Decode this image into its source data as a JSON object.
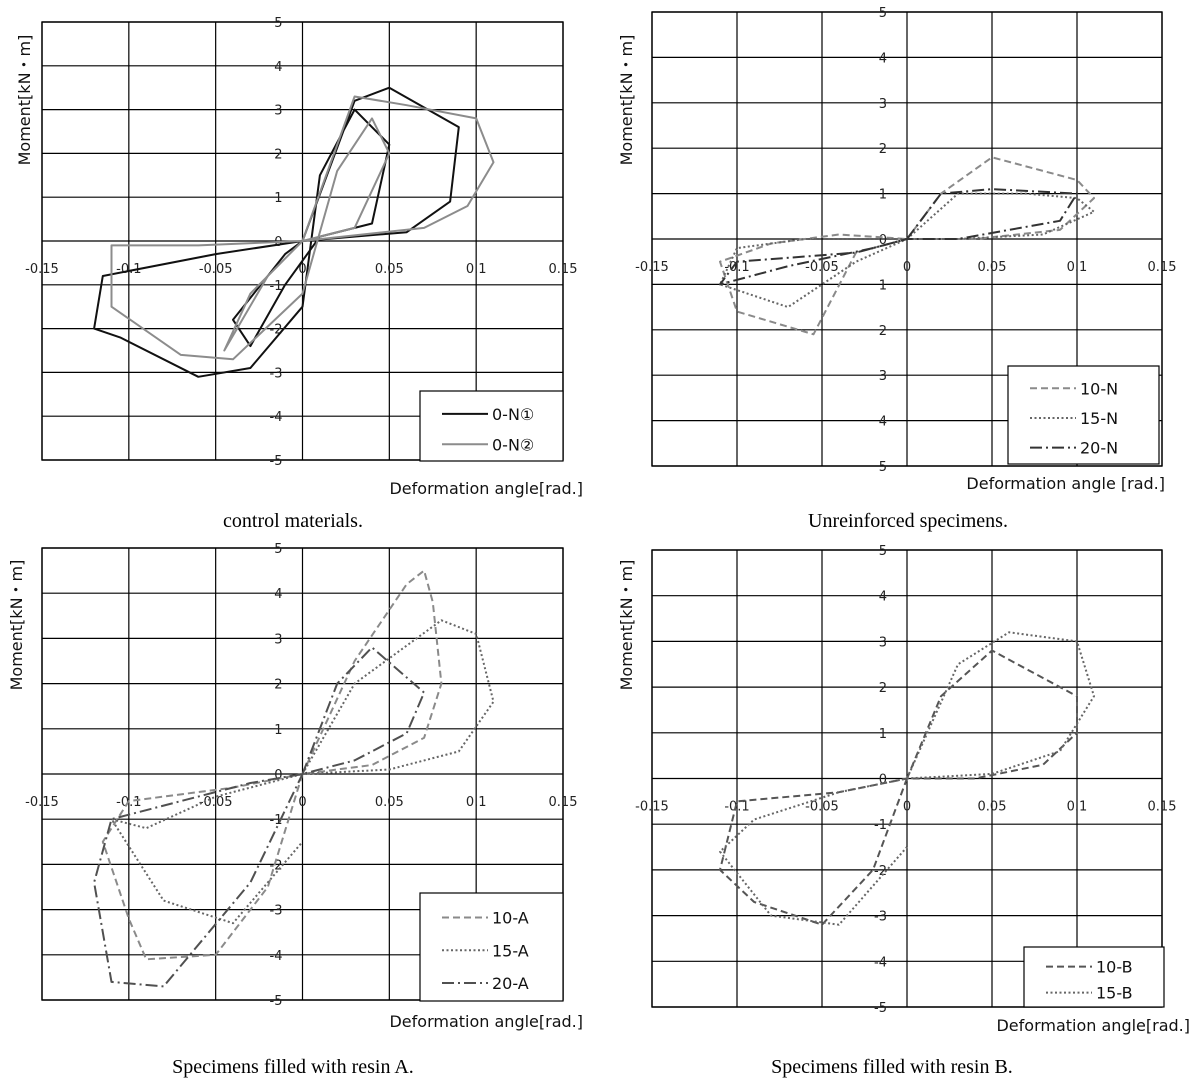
{
  "chart_data": [
    {
      "type": "line",
      "caption": "control materials.",
      "xlabel": "Deformation angle[rad.]",
      "ylabel": "Moment[kN・m]",
      "xlim": [
        -0.15,
        0.15
      ],
      "ylim": [
        -5,
        5
      ],
      "x_ticks": [
        "-0.15",
        "-0.1",
        "-0.05",
        "0",
        "0.05",
        "0.1",
        "0.15"
      ],
      "y_ticks": [
        "5",
        "4",
        "3",
        "2",
        "1",
        "0",
        "-1",
        "-2",
        "-3",
        "-4",
        "-5"
      ],
      "grid": true,
      "legend_position": "bottom-right",
      "series": [
        {
          "name": "0-N①",
          "color": "#111111",
          "style": "solid",
          "x": [
            0,
            0.03,
            0.05,
            0.09,
            0.085,
            0.06,
            0,
            -0.05,
            -0.115,
            -0.12,
            -0.105,
            -0.06,
            -0.03,
            0,
            0.01,
            0.03,
            0.05,
            0.04,
            0.01,
            -0.01,
            -0.03,
            -0.04,
            -0.01,
            0
          ],
          "y": [
            0,
            3.2,
            3.5,
            2.6,
            0.9,
            0.2,
            0,
            -0.3,
            -0.8,
            -2.0,
            -2.2,
            -3.1,
            -2.9,
            -1.5,
            1.5,
            3.0,
            2.2,
            0.4,
            0.1,
            -1.0,
            -2.4,
            -1.8,
            -0.3,
            0
          ]
        },
        {
          "name": "0-N②",
          "color": "#8c8c8c",
          "style": "solid",
          "x": [
            0,
            0.03,
            0.06,
            0.1,
            0.11,
            0.095,
            0.07,
            0,
            -0.06,
            -0.11,
            -0.11,
            -0.07,
            -0.04,
            0,
            0.02,
            0.04,
            0.05,
            0.03,
            0,
            -0.03,
            -0.045,
            -0.02,
            0
          ],
          "y": [
            0,
            3.3,
            3.1,
            2.8,
            1.8,
            0.8,
            0.3,
            0,
            -0.1,
            -0.1,
            -1.5,
            -2.6,
            -2.7,
            -1.2,
            1.6,
            2.8,
            2.0,
            0.3,
            0,
            -1.2,
            -2.5,
            -0.8,
            0
          ]
        }
      ]
    },
    {
      "type": "line",
      "caption": "Unreinforced specimens.",
      "xlabel": "Deformation angle [rad.]",
      "ylabel": "Moment[kN・m]",
      "xlim": [
        -0.15,
        0.15
      ],
      "ylim": [
        -5,
        5
      ],
      "x_ticks": [
        "-0.15",
        "-0.1",
        "-0.05",
        "0",
        "0.05",
        "0.1",
        "0.15"
      ],
      "y_ticks": [
        "5",
        "4",
        "3",
        "2",
        "1",
        "0",
        "1",
        "2",
        "3",
        "4",
        "5"
      ],
      "grid": true,
      "legend_position": "bottom-right",
      "series": [
        {
          "name": "10-N",
          "color": "#8a8a8a",
          "style": "dashed",
          "x": [
            0,
            0.02,
            0.05,
            0.08,
            0.1,
            0.11,
            0.09,
            0.04,
            0,
            -0.03,
            -0.055,
            -0.1,
            -0.11,
            -0.08,
            -0.04,
            0
          ],
          "y": [
            0,
            1.0,
            1.8,
            1.5,
            1.3,
            0.9,
            0.2,
            0,
            0,
            -0.3,
            -2.1,
            -1.6,
            -0.5,
            -0.1,
            0.1,
            0
          ]
        },
        {
          "name": "15-N",
          "color": "#666666",
          "style": "dotted",
          "x": [
            0,
            0.03,
            0.07,
            0.1,
            0.11,
            0.08,
            0.03,
            0,
            -0.03,
            -0.07,
            -0.11,
            -0.1,
            -0.06,
            -0.02,
            0
          ],
          "y": [
            0,
            1.0,
            1.0,
            0.9,
            0.6,
            0.1,
            0,
            0,
            -0.5,
            -1.5,
            -1.0,
            -0.2,
            0,
            0,
            0
          ]
        },
        {
          "name": "20-N",
          "color": "#333333",
          "style": "dashdot",
          "x": [
            0,
            0.02,
            0.05,
            0.1,
            0.09,
            0.03,
            0,
            -0.03,
            -0.1,
            -0.11,
            -0.07,
            -0.02,
            0
          ],
          "y": [
            0,
            1.0,
            1.1,
            1.0,
            0.4,
            0,
            0,
            -0.3,
            -0.5,
            -1.0,
            -0.6,
            -0.2,
            0
          ]
        }
      ]
    },
    {
      "type": "line",
      "caption": "Specimens filled with resin A.",
      "xlabel": "Deformation angle[rad.]",
      "ylabel": "Moment[kN・m]",
      "xlim": [
        -0.15,
        0.15
      ],
      "ylim": [
        -5,
        5
      ],
      "x_ticks": [
        "-0.15",
        "-0.1",
        "-0.05",
        "0",
        "0.05",
        "0.1",
        "0.15"
      ],
      "y_ticks": [
        "5",
        "4",
        "3",
        "2",
        "1",
        "0",
        "-1",
        "-2",
        "-3",
        "-4",
        "-5"
      ],
      "grid": true,
      "legend_position": "bottom-right",
      "series": [
        {
          "name": "10-A",
          "color": "#8a8a8a",
          "style": "dashed",
          "x": [
            0,
            0.03,
            0.06,
            0.07,
            0.075,
            0.08,
            0.07,
            0.04,
            0,
            -0.04,
            -0.1,
            -0.115,
            -0.1,
            -0.09,
            -0.05,
            -0.02,
            0
          ],
          "y": [
            0,
            2.5,
            4.2,
            4.5,
            3.8,
            2.0,
            0.8,
            0.2,
            0,
            -0.3,
            -0.6,
            -1.5,
            -3.2,
            -4.1,
            -4.0,
            -2.5,
            0
          ]
        },
        {
          "name": "15-A",
          "color": "#666666",
          "style": "dotted",
          "x": [
            0,
            0.03,
            0.08,
            0.1,
            0.11,
            0.09,
            0.05,
            0,
            -0.05,
            -0.09,
            -0.11,
            -0.08,
            -0.04,
            0
          ],
          "y": [
            0,
            2.0,
            3.4,
            3.1,
            1.6,
            0.5,
            0.1,
            0,
            -0.5,
            -1.2,
            -1.0,
            -2.8,
            -3.3,
            -1.5
          ]
        },
        {
          "name": "20-A",
          "color": "#505050",
          "style": "dashdot",
          "x": [
            0,
            0.02,
            0.04,
            0.07,
            0.06,
            0.03,
            0,
            -0.03,
            -0.07,
            -0.11,
            -0.12,
            -0.11,
            -0.08,
            -0.03,
            0
          ],
          "y": [
            0,
            2.0,
            2.8,
            1.8,
            0.9,
            0.3,
            0,
            -0.2,
            -0.6,
            -1.0,
            -2.4,
            -4.6,
            -4.7,
            -2.4,
            0
          ]
        }
      ]
    },
    {
      "type": "line",
      "caption": "Specimens filled with resin B.",
      "xlabel": "Deformation angle[rad.]",
      "ylabel": "Moment[kN・m]",
      "xlim": [
        -0.15,
        0.15
      ],
      "ylim": [
        -5,
        5
      ],
      "x_ticks": [
        "-0.15",
        "-0.1",
        "-0.05",
        "0",
        "0.05",
        "0.1",
        "0.15"
      ],
      "y_ticks": [
        "5",
        "4",
        "3",
        "2",
        "1",
        "0",
        "-1",
        "-2",
        "-3",
        "-4",
        "-5"
      ],
      "grid": true,
      "legend_position": "bottom-right",
      "series": [
        {
          "name": "10-B",
          "color": "#555555",
          "style": "dashed",
          "x": [
            0,
            0.02,
            0.05,
            0.08,
            0.1,
            0.1,
            0.08,
            0.04,
            0,
            -0.04,
            -0.1,
            -0.11,
            -0.09,
            -0.05,
            -0.02,
            0
          ],
          "y": [
            0,
            1.8,
            2.8,
            2.2,
            1.8,
            1.0,
            0.3,
            0,
            0,
            -0.3,
            -0.5,
            -2.0,
            -2.7,
            -3.2,
            -2.0,
            0
          ]
        },
        {
          "name": "15-B",
          "color": "#666666",
          "style": "dotted",
          "x": [
            0,
            0.03,
            0.06,
            0.1,
            0.11,
            0.09,
            0.05,
            0,
            -0.04,
            -0.09,
            -0.11,
            -0.08,
            -0.04,
            0
          ],
          "y": [
            0,
            2.5,
            3.2,
            3.0,
            1.8,
            0.6,
            0.1,
            0,
            -0.3,
            -0.9,
            -1.6,
            -3.0,
            -3.2,
            -1.5
          ]
        }
      ]
    }
  ]
}
